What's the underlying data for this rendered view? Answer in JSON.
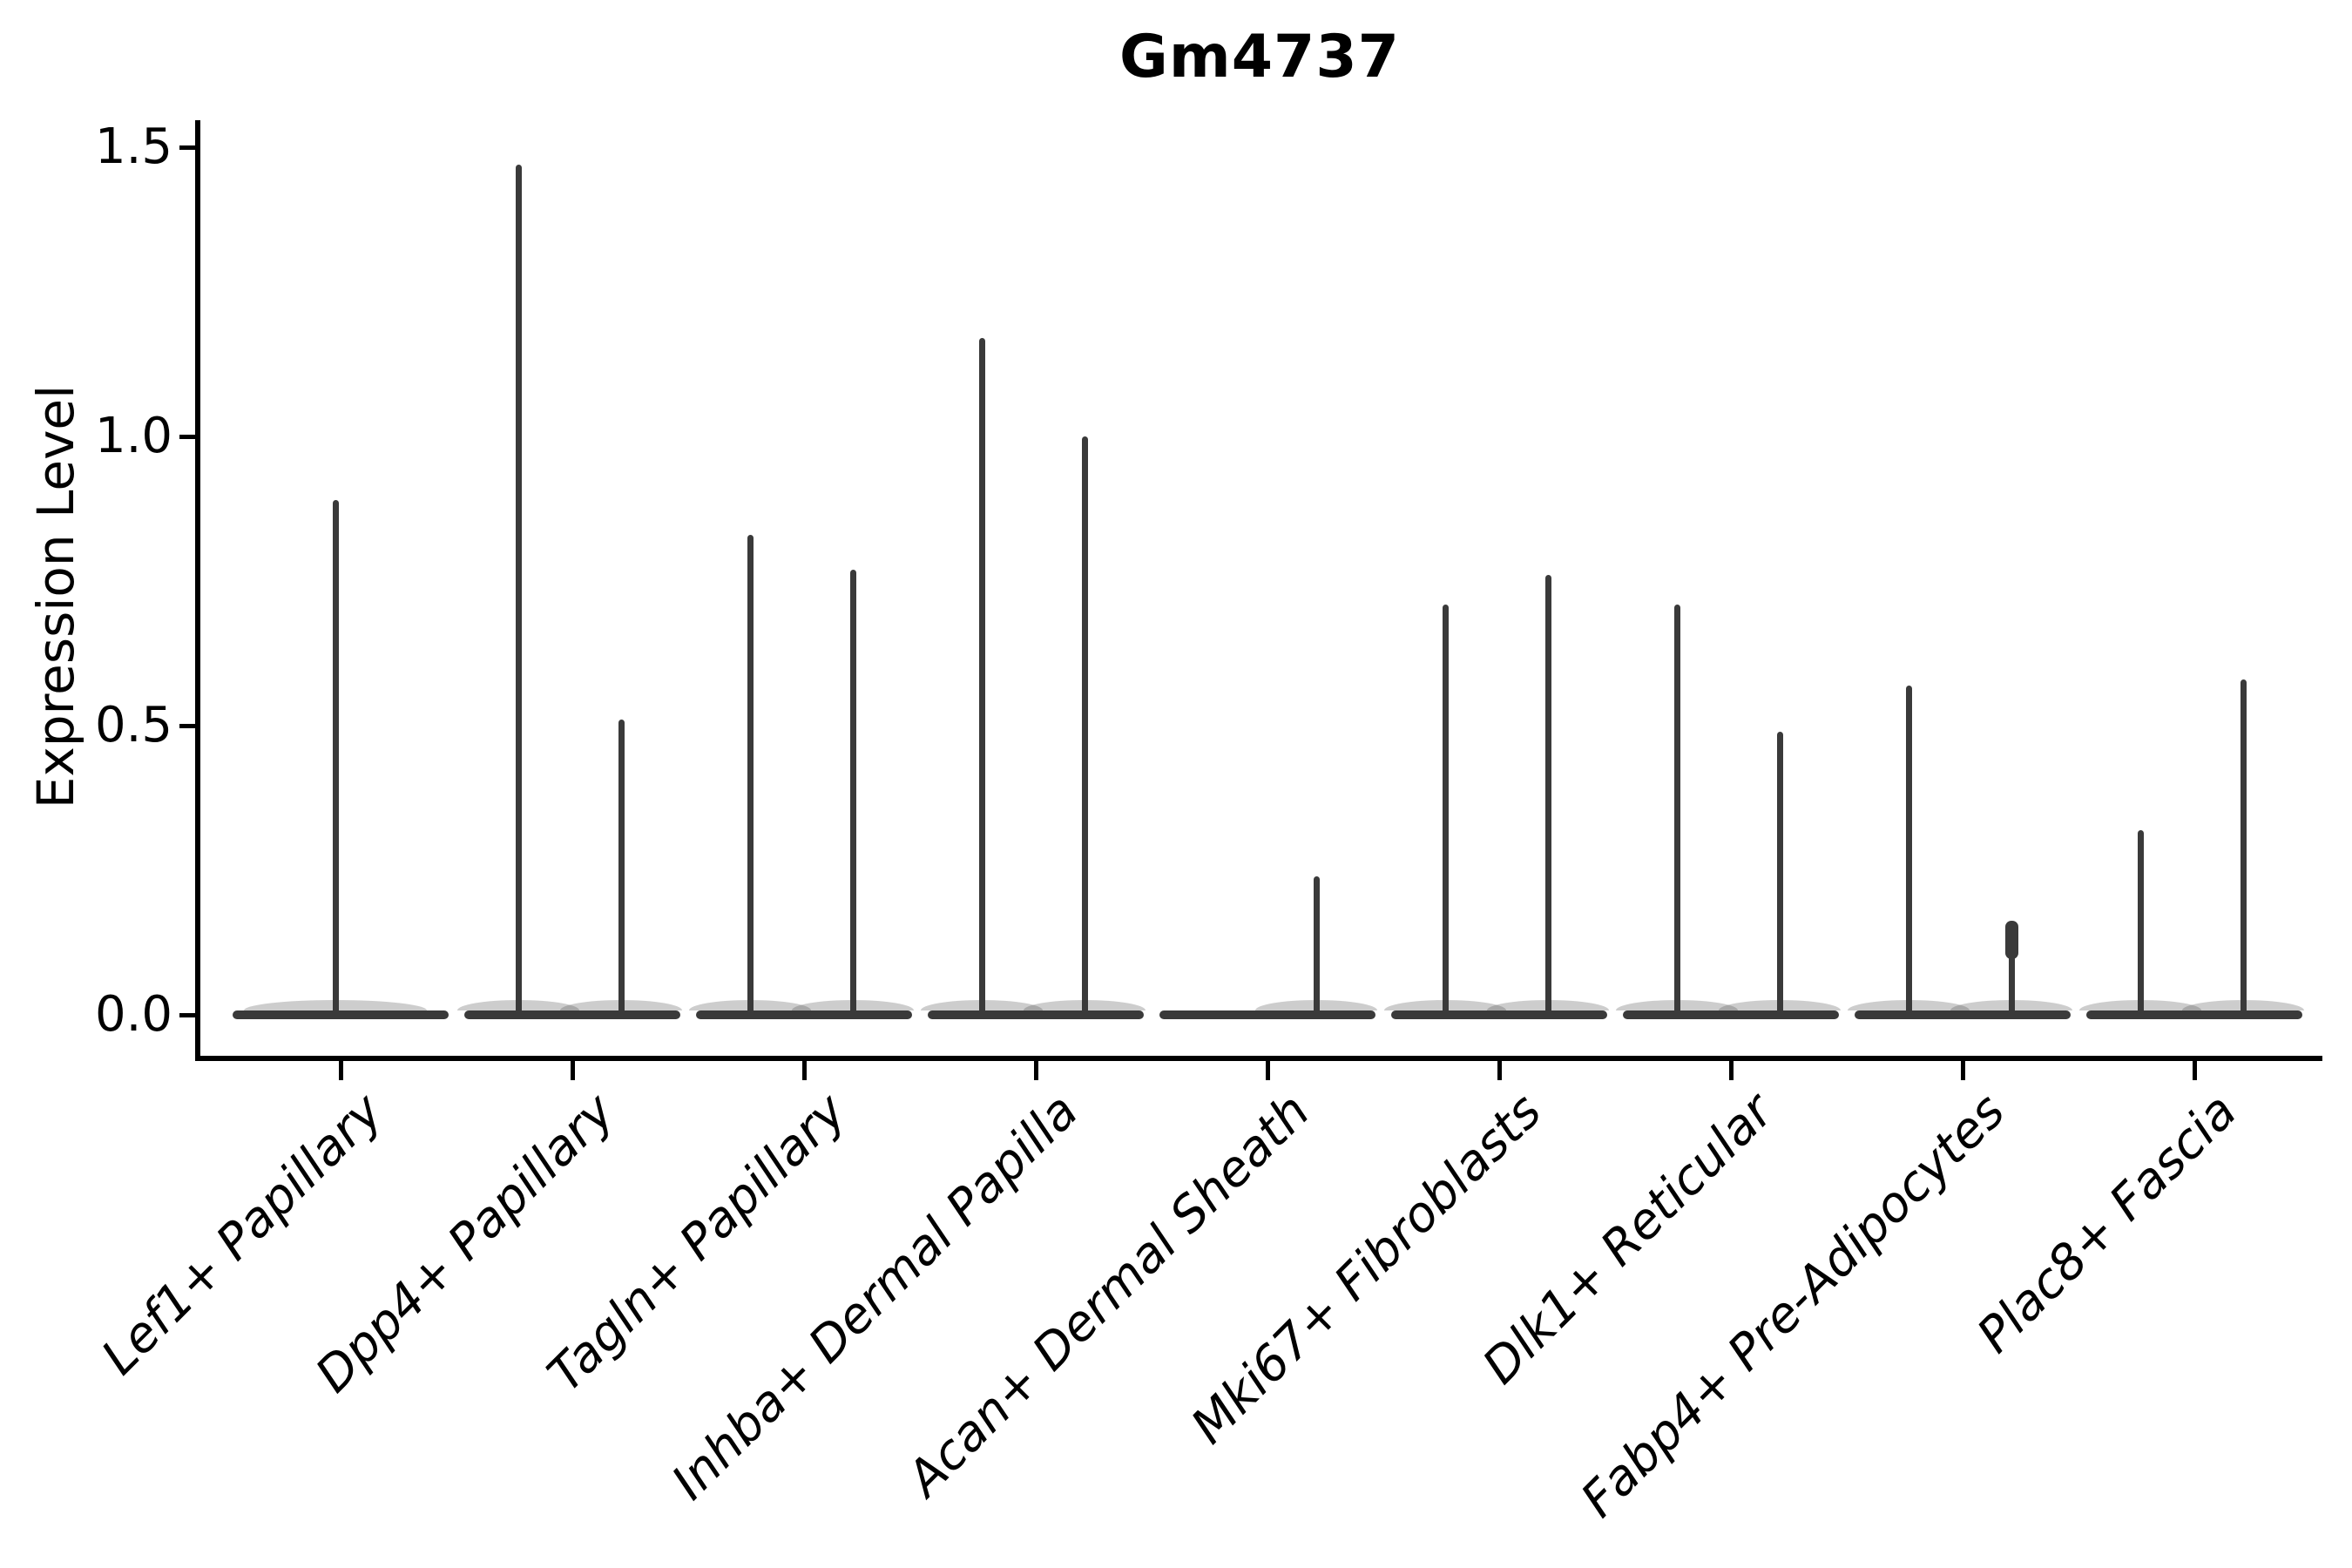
{
  "title": "Gm4737",
  "chart_data": {
    "type": "violin",
    "title": "Gm4737",
    "ylabel": "Expression Level",
    "xlabel": "",
    "ylim": [
      0,
      1.5
    ],
    "y_ticks": [
      {
        "label": "0.0",
        "value": 0.0
      },
      {
        "label": "0.5",
        "value": 0.5
      },
      {
        "label": "1.0",
        "value": 1.0
      },
      {
        "label": "1.5",
        "value": 1.5
      }
    ],
    "grid": false,
    "legend": "none",
    "x_tick_label_rotation_deg": 45,
    "note": "Single-cell gene expression violin plot: each violin has a wide flat density base at 0 and a very thin spike reaching its maximum expression value.",
    "categories": [
      "Lef1+ Papillary",
      "Dpp4+ Papillary",
      "Tagln+ Papillary",
      "Inhba+ Dermal Papilla",
      "Acan+ Dermal Sheath",
      "Mki67+ Fibroblasts",
      "Dlk1+ Reticular",
      "Fabp4+ Pre-Adipocytes",
      "Plac8+ Fascia"
    ],
    "series": [
      {
        "category": "Lef1+ Papillary",
        "violins": [
          {
            "position": "center",
            "max_expression": 0.89
          }
        ]
      },
      {
        "category": "Dpp4+ Papillary",
        "violins": [
          {
            "position": "left",
            "max_expression": 1.47
          },
          {
            "position": "right",
            "max_expression": 0.51
          }
        ]
      },
      {
        "category": "Tagln+ Papillary",
        "violins": [
          {
            "position": "left",
            "max_expression": 0.83
          },
          {
            "position": "right",
            "max_expression": 0.77
          }
        ]
      },
      {
        "category": "Inhba+ Dermal Papilla",
        "violins": [
          {
            "position": "left",
            "max_expression": 1.17
          },
          {
            "position": "right",
            "max_expression": 1.0
          }
        ]
      },
      {
        "category": "Acan+ Dermal Sheath",
        "violins": [
          {
            "position": "right",
            "max_expression": 0.24
          }
        ]
      },
      {
        "category": "Mki67+ Fibroblasts",
        "violins": [
          {
            "position": "left",
            "max_expression": 0.71
          },
          {
            "position": "right",
            "max_expression": 0.76
          }
        ]
      },
      {
        "category": "Dlk1+ Reticular",
        "violins": [
          {
            "position": "left",
            "max_expression": 0.71
          },
          {
            "position": "right",
            "max_expression": 0.49
          }
        ]
      },
      {
        "category": "Fabp4+ Pre-Adipocytes",
        "violins": [
          {
            "position": "left",
            "max_expression": 0.57
          },
          {
            "position": "right",
            "max_expression": 0.16,
            "bulge_near_top": true
          }
        ]
      },
      {
        "category": "Plac8+ Fascia",
        "violins": [
          {
            "position": "left",
            "max_expression": 0.32
          },
          {
            "position": "right",
            "max_expression": 0.58
          }
        ]
      }
    ],
    "colors": {
      "violin": "#3a3a3a",
      "axis": "#000000",
      "background": "#ffffff"
    }
  }
}
